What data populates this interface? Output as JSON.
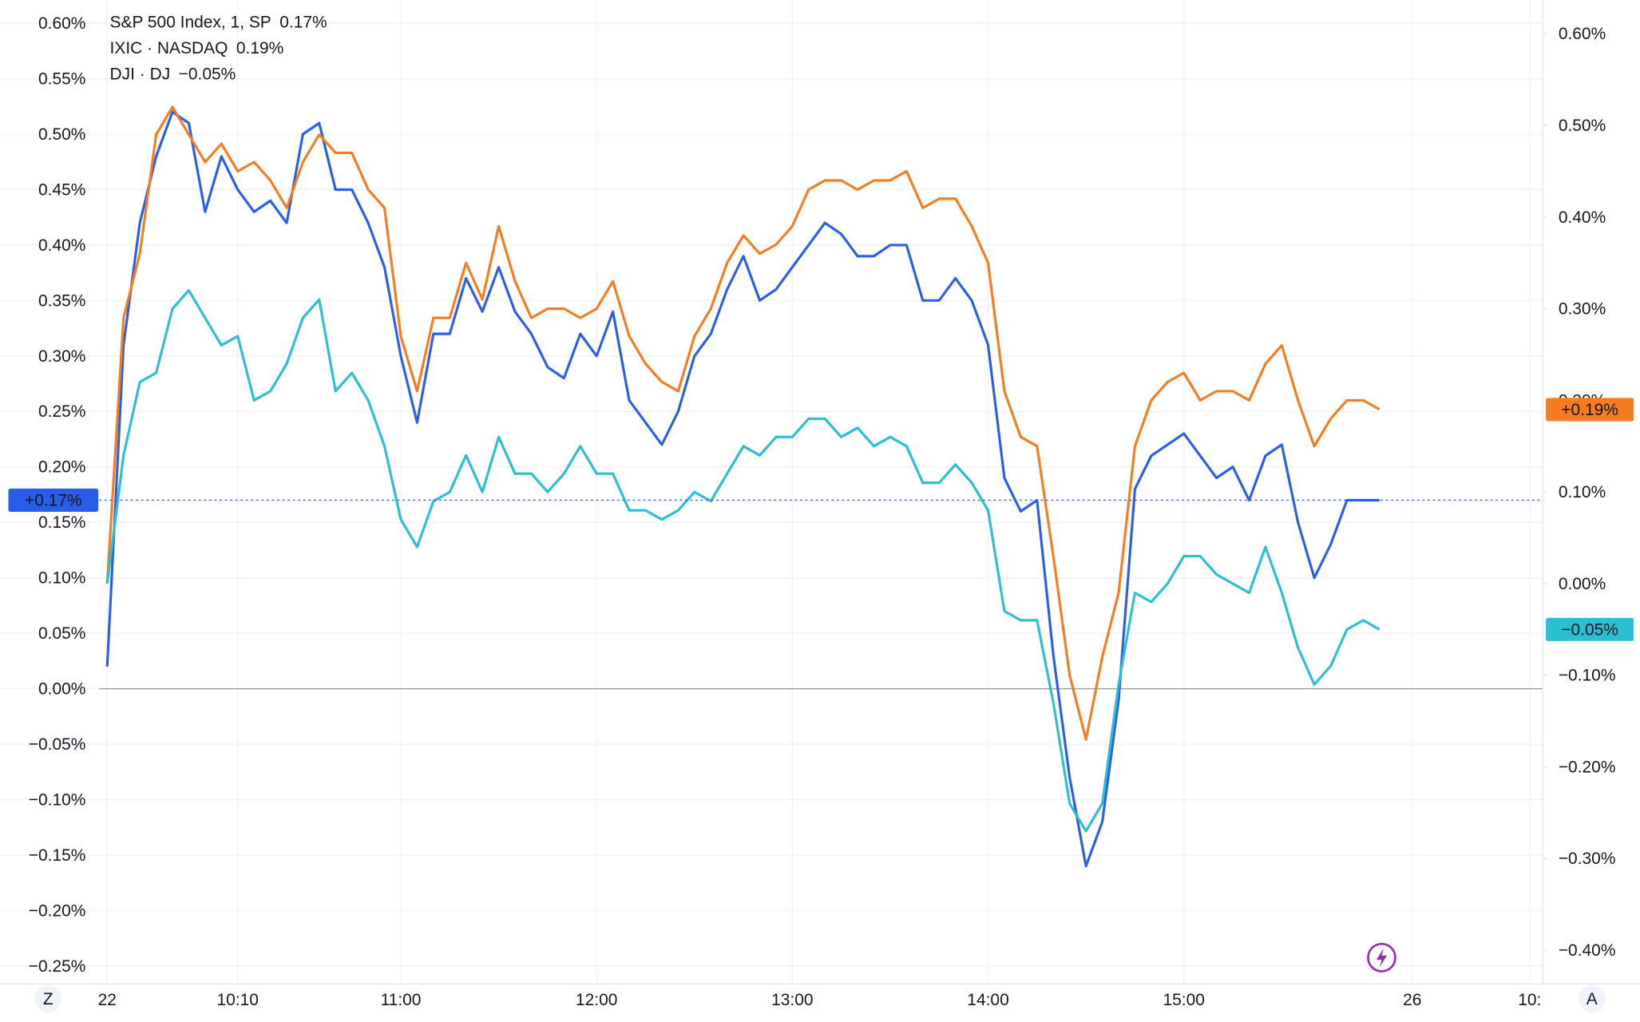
{
  "chart_data": {
    "type": "line",
    "x": [
      0,
      5,
      10,
      15,
      20,
      25,
      30,
      35,
      40,
      45,
      50,
      55,
      60,
      65,
      70,
      75,
      80,
      85,
      90,
      95,
      100,
      105,
      110,
      115,
      120,
      125,
      130,
      135,
      140,
      145,
      150,
      155,
      160,
      165,
      170,
      175,
      180,
      185,
      190,
      195,
      200,
      205,
      210,
      215,
      220,
      225,
      230,
      235,
      240,
      245,
      250,
      255,
      260,
      265,
      270,
      275,
      280,
      285,
      290,
      295,
      300,
      305,
      310,
      315,
      320,
      325,
      330,
      335,
      340,
      345,
      350,
      355,
      360,
      365,
      370,
      375,
      380,
      385,
      390
    ],
    "xlim": [
      -2.4,
      440
    ],
    "xticks": [
      {
        "value": 0,
        "label": "22"
      },
      {
        "value": 40,
        "label": "10:10"
      },
      {
        "value": 90,
        "label": "11:00"
      },
      {
        "value": 150,
        "label": "12:00"
      },
      {
        "value": 210,
        "label": "13:00"
      },
      {
        "value": 270,
        "label": "14:00"
      },
      {
        "value": 330,
        "label": "15:00"
      },
      {
        "value": 400,
        "label": "26"
      },
      {
        "value": 436,
        "label": "10:"
      }
    ],
    "ylim": [
      -0.25,
      0.6
    ],
    "yticks": [
      {
        "value": -0.25,
        "label": "−0.25%"
      },
      {
        "value": -0.2,
        "label": "−0.20%"
      },
      {
        "value": -0.15,
        "label": "−0.15%"
      },
      {
        "value": -0.1,
        "label": "−0.10%"
      },
      {
        "value": -0.05,
        "label": "−0.05%"
      },
      {
        "value": 0,
        "label": "0.00%"
      },
      {
        "value": 0.05,
        "label": "0.05%"
      },
      {
        "value": 0.1,
        "label": "0.10%"
      },
      {
        "value": 0.15,
        "label": "0.15%"
      },
      {
        "value": 0.2,
        "label": "0.20%"
      },
      {
        "value": 0.25,
        "label": "0.25%"
      },
      {
        "value": 0.3,
        "label": "0.30%"
      },
      {
        "value": 0.35,
        "label": "0.35%"
      },
      {
        "value": 0.4,
        "label": "0.40%"
      },
      {
        "value": 0.45,
        "label": "0.45%"
      },
      {
        "value": 0.5,
        "label": "0.50%"
      },
      {
        "value": 0.55,
        "label": "0.55%"
      },
      {
        "value": 0.6,
        "label": "0.60%"
      }
    ],
    "y2lim": [
      -0.4,
      0.6
    ],
    "y2ticks": [
      {
        "value": -0.4,
        "label": "−0.40%"
      },
      {
        "value": -0.3,
        "label": "−0.30%"
      },
      {
        "value": -0.2,
        "label": "−0.20%"
      },
      {
        "value": -0.1,
        "label": "−0.10%"
      },
      {
        "value": 0,
        "label": "0.00%"
      },
      {
        "value": 0.1,
        "label": "0.10%"
      },
      {
        "value": 0.2,
        "label": "0.20%"
      },
      {
        "value": 0.3,
        "label": "0.30%"
      },
      {
        "value": 0.4,
        "label": "0.40%"
      },
      {
        "value": 0.5,
        "label": "0.50%"
      },
      {
        "value": 0.6,
        "label": "0.60%"
      }
    ],
    "grid": true,
    "series": [
      {
        "name": "S&P 500 Index, 1, SP",
        "color": "#2a5de8",
        "legend_value": "0.17%",
        "badge": "+0.17%",
        "values": [
          0.02,
          0.31,
          0.42,
          0.48,
          0.52,
          0.51,
          0.43,
          0.48,
          0.45,
          0.43,
          0.44,
          0.42,
          0.5,
          0.51,
          0.45,
          0.45,
          0.42,
          0.38,
          0.3,
          0.24,
          0.32,
          0.32,
          0.37,
          0.34,
          0.38,
          0.34,
          0.32,
          0.29,
          0.28,
          0.32,
          0.3,
          0.34,
          0.26,
          0.24,
          0.22,
          0.25,
          0.3,
          0.32,
          0.36,
          0.39,
          0.35,
          0.36,
          0.38,
          0.4,
          0.42,
          0.41,
          0.39,
          0.39,
          0.4,
          0.4,
          0.35,
          0.35,
          0.37,
          0.35,
          0.31,
          0.19,
          0.16,
          0.17,
          0.03,
          -0.08,
          -0.16,
          -0.12,
          -0.01,
          0.18,
          0.21,
          0.22,
          0.23,
          0.21,
          0.19,
          0.2,
          0.17,
          0.21,
          0.22,
          0.15,
          0.1,
          0.13,
          0.17,
          0.17,
          0.17
        ]
      },
      {
        "name": "IXIC · NASDAQ",
        "color": "#f57c1f",
        "legend_value": "0.19%",
        "badge": "+0.19%",
        "axis": "y2",
        "values": [
          0.0,
          0.29,
          0.36,
          0.49,
          0.52,
          0.49,
          0.46,
          0.48,
          0.45,
          0.46,
          0.44,
          0.41,
          0.46,
          0.49,
          0.47,
          0.47,
          0.43,
          0.41,
          0.27,
          0.21,
          0.29,
          0.29,
          0.35,
          0.31,
          0.39,
          0.33,
          0.29,
          0.3,
          0.3,
          0.29,
          0.3,
          0.33,
          0.27,
          0.24,
          0.22,
          0.21,
          0.27,
          0.3,
          0.35,
          0.38,
          0.36,
          0.37,
          0.39,
          0.43,
          0.44,
          0.44,
          0.43,
          0.44,
          0.44,
          0.45,
          0.41,
          0.42,
          0.42,
          0.39,
          0.35,
          0.21,
          0.16,
          0.15,
          0.03,
          -0.1,
          -0.17,
          -0.08,
          -0.01,
          0.15,
          0.2,
          0.22,
          0.23,
          0.2,
          0.21,
          0.21,
          0.2,
          0.24,
          0.26,
          0.2,
          0.15,
          0.18,
          0.2,
          0.2,
          0.19
        ]
      },
      {
        "name": "DJI · DJ",
        "color": "#2bbfcf",
        "legend_value": "−0.05%",
        "badge": "−0.05%",
        "axis": "y2",
        "values": [
          0.0,
          0.14,
          0.22,
          0.23,
          0.3,
          0.32,
          0.29,
          0.26,
          0.27,
          0.2,
          0.21,
          0.24,
          0.29,
          0.31,
          0.21,
          0.23,
          0.2,
          0.15,
          0.07,
          0.04,
          0.09,
          0.1,
          0.14,
          0.1,
          0.16,
          0.12,
          0.12,
          0.1,
          0.12,
          0.15,
          0.12,
          0.12,
          0.08,
          0.08,
          0.07,
          0.08,
          0.1,
          0.09,
          0.12,
          0.15,
          0.14,
          0.16,
          0.16,
          0.18,
          0.18,
          0.16,
          0.17,
          0.15,
          0.16,
          0.15,
          0.11,
          0.11,
          0.13,
          0.11,
          0.08,
          -0.03,
          -0.04,
          -0.04,
          -0.13,
          -0.24,
          -0.27,
          -0.24,
          -0.11,
          -0.01,
          -0.02,
          0.0,
          0.03,
          0.03,
          0.01,
          0.0,
          -0.01,
          0.04,
          -0.01,
          -0.07,
          -0.11,
          -0.09,
          -0.05,
          -0.04,
          -0.05
        ]
      }
    ]
  },
  "controls": {
    "left": "Z",
    "right": "A"
  }
}
